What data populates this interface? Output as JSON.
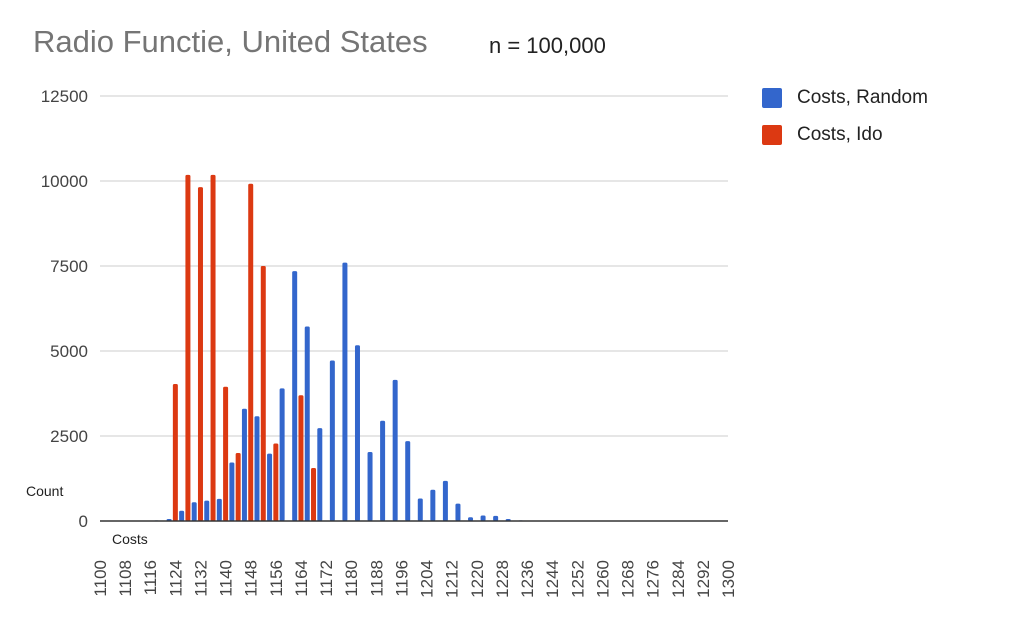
{
  "chart_data": {
    "type": "bar",
    "title": "Radio Functie, United States",
    "subtitle": "n = 100,000",
    "xlabel": "Costs",
    "ylabel": "Count",
    "ylim": [
      0,
      12500
    ],
    "yticks": [
      0,
      2500,
      5000,
      7500,
      10000,
      12500
    ],
    "xlim": [
      1100,
      1300
    ],
    "xticks": [
      1100,
      1108,
      1116,
      1124,
      1132,
      1140,
      1148,
      1156,
      1164,
      1172,
      1180,
      1188,
      1196,
      1204,
      1212,
      1220,
      1228,
      1236,
      1244,
      1252,
      1260,
      1268,
      1276,
      1284,
      1292,
      1300
    ],
    "grid": true,
    "legend_position": "right",
    "series": [
      {
        "name": "Costs, Random",
        "color": "#3366cc",
        "points": [
          {
            "x": 1118,
            "y": 20
          },
          {
            "x": 1122,
            "y": 60
          },
          {
            "x": 1126,
            "y": 300
          },
          {
            "x": 1130,
            "y": 550
          },
          {
            "x": 1134,
            "y": 600
          },
          {
            "x": 1138,
            "y": 650
          },
          {
            "x": 1142,
            "y": 1720
          },
          {
            "x": 1146,
            "y": 3300
          },
          {
            "x": 1150,
            "y": 3080
          },
          {
            "x": 1154,
            "y": 1980
          },
          {
            "x": 1158,
            "y": 3900
          },
          {
            "x": 1162,
            "y": 7350
          },
          {
            "x": 1166,
            "y": 5720
          },
          {
            "x": 1170,
            "y": 2730
          },
          {
            "x": 1174,
            "y": 4720
          },
          {
            "x": 1178,
            "y": 7600
          },
          {
            "x": 1182,
            "y": 5170
          },
          {
            "x": 1186,
            "y": 2030
          },
          {
            "x": 1190,
            "y": 2950
          },
          {
            "x": 1194,
            "y": 4150
          },
          {
            "x": 1198,
            "y": 2350
          },
          {
            "x": 1202,
            "y": 660
          },
          {
            "x": 1206,
            "y": 920
          },
          {
            "x": 1210,
            "y": 1180
          },
          {
            "x": 1214,
            "y": 510
          },
          {
            "x": 1218,
            "y": 110
          },
          {
            "x": 1222,
            "y": 160
          },
          {
            "x": 1226,
            "y": 150
          },
          {
            "x": 1230,
            "y": 60
          },
          {
            "x": 1234,
            "y": 20
          },
          {
            "x": 1238,
            "y": 15
          },
          {
            "x": 1242,
            "y": 10
          }
        ]
      },
      {
        "name": "Costs, Ido",
        "color": "#dc3912",
        "points": [
          {
            "x": 1124,
            "y": 4030
          },
          {
            "x": 1128,
            "y": 10180
          },
          {
            "x": 1132,
            "y": 9820
          },
          {
            "x": 1136,
            "y": 10180
          },
          {
            "x": 1140,
            "y": 3950
          },
          {
            "x": 1144,
            "y": 2000
          },
          {
            "x": 1148,
            "y": 9920
          },
          {
            "x": 1152,
            "y": 7500
          },
          {
            "x": 1156,
            "y": 2280
          },
          {
            "x": 1164,
            "y": 3700
          },
          {
            "x": 1168,
            "y": 1560
          }
        ]
      }
    ]
  }
}
